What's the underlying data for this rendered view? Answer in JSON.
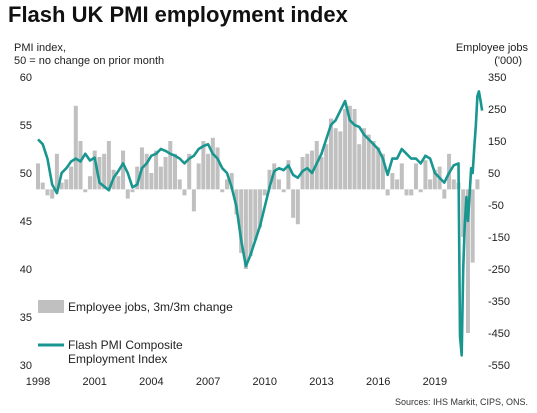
{
  "chart_data": {
    "type": "bar+line",
    "title": "Flash UK PMI employment index",
    "left_axis_title_line1": "PMI index,",
    "left_axis_title_line2": "50 = no change on prior month",
    "right_axis_title_line1": "Employee jobs",
    "right_axis_title_line2": "('000)",
    "left_ylim": [
      30,
      60
    ],
    "left_ticks": [
      30,
      35,
      40,
      45,
      50,
      55,
      60
    ],
    "right_ylim": [
      -550,
      350
    ],
    "right_ticks": [
      -550,
      -450,
      -350,
      -250,
      -150,
      -50,
      50,
      150,
      250,
      350
    ],
    "x_ticks": [
      "1998",
      "2001",
      "2004",
      "2007",
      "2010",
      "2013",
      "2016",
      "2019"
    ],
    "x_range": [
      1998.0,
      2021.6
    ],
    "grid": false,
    "legend": [
      {
        "label": "Employee jobs, 3m/3m change",
        "type": "bar",
        "color": "#c0c0c0"
      },
      {
        "label_line1": "Flash PMI Composite",
        "label_line2": "Employment Index",
        "type": "line",
        "color": "#1a9690"
      }
    ],
    "source": "Sources: IHS Markit, CIPS, ONS.",
    "bar_series": {
      "name": "Employee jobs, 3m/3m change",
      "color": "#c0c0c0",
      "x": [
        1998.0,
        1998.25,
        1998.5,
        1998.75,
        1999.0,
        1999.25,
        1999.5,
        1999.75,
        2000.0,
        2000.25,
        2000.5,
        2000.75,
        2001.0,
        2001.25,
        2001.5,
        2001.75,
        2002.0,
        2002.25,
        2002.5,
        2002.75,
        2003.0,
        2003.25,
        2003.5,
        2003.75,
        2004.0,
        2004.25,
        2004.5,
        2004.75,
        2005.0,
        2005.25,
        2005.5,
        2005.75,
        2006.0,
        2006.25,
        2006.5,
        2006.75,
        2007.0,
        2007.25,
        2007.5,
        2007.75,
        2008.0,
        2008.25,
        2008.5,
        2008.75,
        2009.0,
        2009.25,
        2009.5,
        2009.75,
        2010.0,
        2010.25,
        2010.5,
        2010.75,
        2011.0,
        2011.25,
        2011.5,
        2011.75,
        2012.0,
        2012.25,
        2012.5,
        2012.75,
        2013.0,
        2013.25,
        2013.5,
        2013.75,
        2014.0,
        2014.25,
        2014.5,
        2014.75,
        2015.0,
        2015.25,
        2015.5,
        2015.75,
        2016.0,
        2016.25,
        2016.5,
        2016.75,
        2017.0,
        2017.25,
        2017.5,
        2017.75,
        2018.0,
        2018.25,
        2018.5,
        2018.75,
        2019.0,
        2019.25,
        2019.5,
        2019.75,
        2020.0,
        2020.25,
        2020.5,
        2020.75,
        2021.0,
        2021.25
      ],
      "values": [
        80,
        20,
        -20,
        -30,
        110,
        20,
        30,
        70,
        260,
        150,
        -10,
        40,
        120,
        100,
        110,
        150,
        60,
        40,
        120,
        -30,
        -10,
        70,
        130,
        110,
        50,
        120,
        70,
        100,
        150,
        110,
        30,
        -20,
        110,
        -70,
        80,
        150,
        110,
        160,
        130,
        -10,
        30,
        50,
        -80,
        -200,
        -250,
        -210,
        -160,
        -120,
        -20,
        60,
        80,
        30,
        -10,
        90,
        -90,
        -110,
        100,
        110,
        120,
        150,
        100,
        140,
        220,
        190,
        180,
        250,
        260,
        250,
        140,
        190,
        170,
        150,
        130,
        110,
        -20,
        50,
        30,
        80,
        -20,
        -20,
        80,
        -10,
        90,
        30,
        60,
        70,
        -30,
        110,
        30,
        20,
        -150,
        -450,
        -230,
        30
      ],
      "note": "Approximate 3m/3m change in employee jobs ('000), read off the right axis."
    },
    "line_series": {
      "name": "Flash PMI Composite Employment Index",
      "color": "#1a9690",
      "x": [
        1998.0,
        1998.25,
        1998.5,
        1998.75,
        1999.0,
        1999.25,
        1999.5,
        1999.75,
        2000.0,
        2000.25,
        2000.5,
        2000.75,
        2001.0,
        2001.25,
        2001.5,
        2001.75,
        2002.0,
        2002.25,
        2002.5,
        2002.75,
        2003.0,
        2003.25,
        2003.5,
        2003.75,
        2004.0,
        2004.25,
        2004.5,
        2004.75,
        2005.0,
        2005.25,
        2005.5,
        2005.75,
        2006.0,
        2006.25,
        2006.5,
        2006.75,
        2007.0,
        2007.25,
        2007.5,
        2007.75,
        2008.0,
        2008.25,
        2008.5,
        2008.75,
        2009.0,
        2009.25,
        2009.5,
        2009.75,
        2010.0,
        2010.25,
        2010.5,
        2010.75,
        2011.0,
        2011.25,
        2011.5,
        2011.75,
        2012.0,
        2012.25,
        2012.5,
        2012.75,
        2013.0,
        2013.25,
        2013.5,
        2013.75,
        2014.0,
        2014.25,
        2014.5,
        2014.75,
        2015.0,
        2015.25,
        2015.5,
        2015.75,
        2016.0,
        2016.25,
        2016.5,
        2016.75,
        2017.0,
        2017.25,
        2017.5,
        2017.75,
        2018.0,
        2018.25,
        2018.5,
        2018.75,
        2019.0,
        2019.25,
        2019.5,
        2019.75,
        2020.0,
        2020.25,
        2020.33,
        2020.42,
        2020.5,
        2020.58,
        2020.67,
        2020.75,
        2020.83,
        2020.92,
        2021.0,
        2021.08,
        2021.17,
        2021.25,
        2021.33,
        2021.42,
        2021.5
      ],
      "values": [
        53.5,
        53.0,
        51.5,
        48.8,
        47.9,
        50.0,
        50.5,
        51.2,
        51.5,
        51.2,
        52.0,
        51.3,
        51.6,
        49.0,
        48.6,
        48.2,
        49.5,
        50.2,
        51.0,
        50.0,
        48.5,
        48.8,
        50.5,
        51.0,
        51.8,
        52.0,
        52.5,
        52.3,
        52.0,
        51.8,
        51.5,
        51.0,
        51.5,
        51.8,
        52.5,
        52.8,
        53.0,
        52.0,
        51.5,
        50.5,
        50.0,
        48.5,
        46.5,
        43.0,
        40.3,
        41.5,
        43.0,
        44.5,
        46.5,
        48.5,
        50.2,
        50.5,
        50.3,
        50.8,
        49.8,
        49.5,
        50.2,
        50.5,
        50.0,
        51.0,
        52.0,
        53.5,
        55.0,
        55.5,
        56.5,
        57.5,
        55.5,
        55.0,
        54.8,
        54.0,
        53.5,
        53.0,
        52.5,
        51.5,
        49.8,
        51.5,
        51.5,
        52.5,
        52.0,
        51.5,
        51.5,
        51.0,
        51.8,
        51.5,
        50.0,
        49.5,
        49.0,
        50.0,
        50.8,
        51.0,
        33.0,
        31.0,
        40.0,
        44.5,
        47.5,
        45.0,
        47.5,
        50.5,
        50.0,
        52.5,
        55.0,
        58.0,
        58.5,
        57.5,
        56.5
      ]
    }
  }
}
